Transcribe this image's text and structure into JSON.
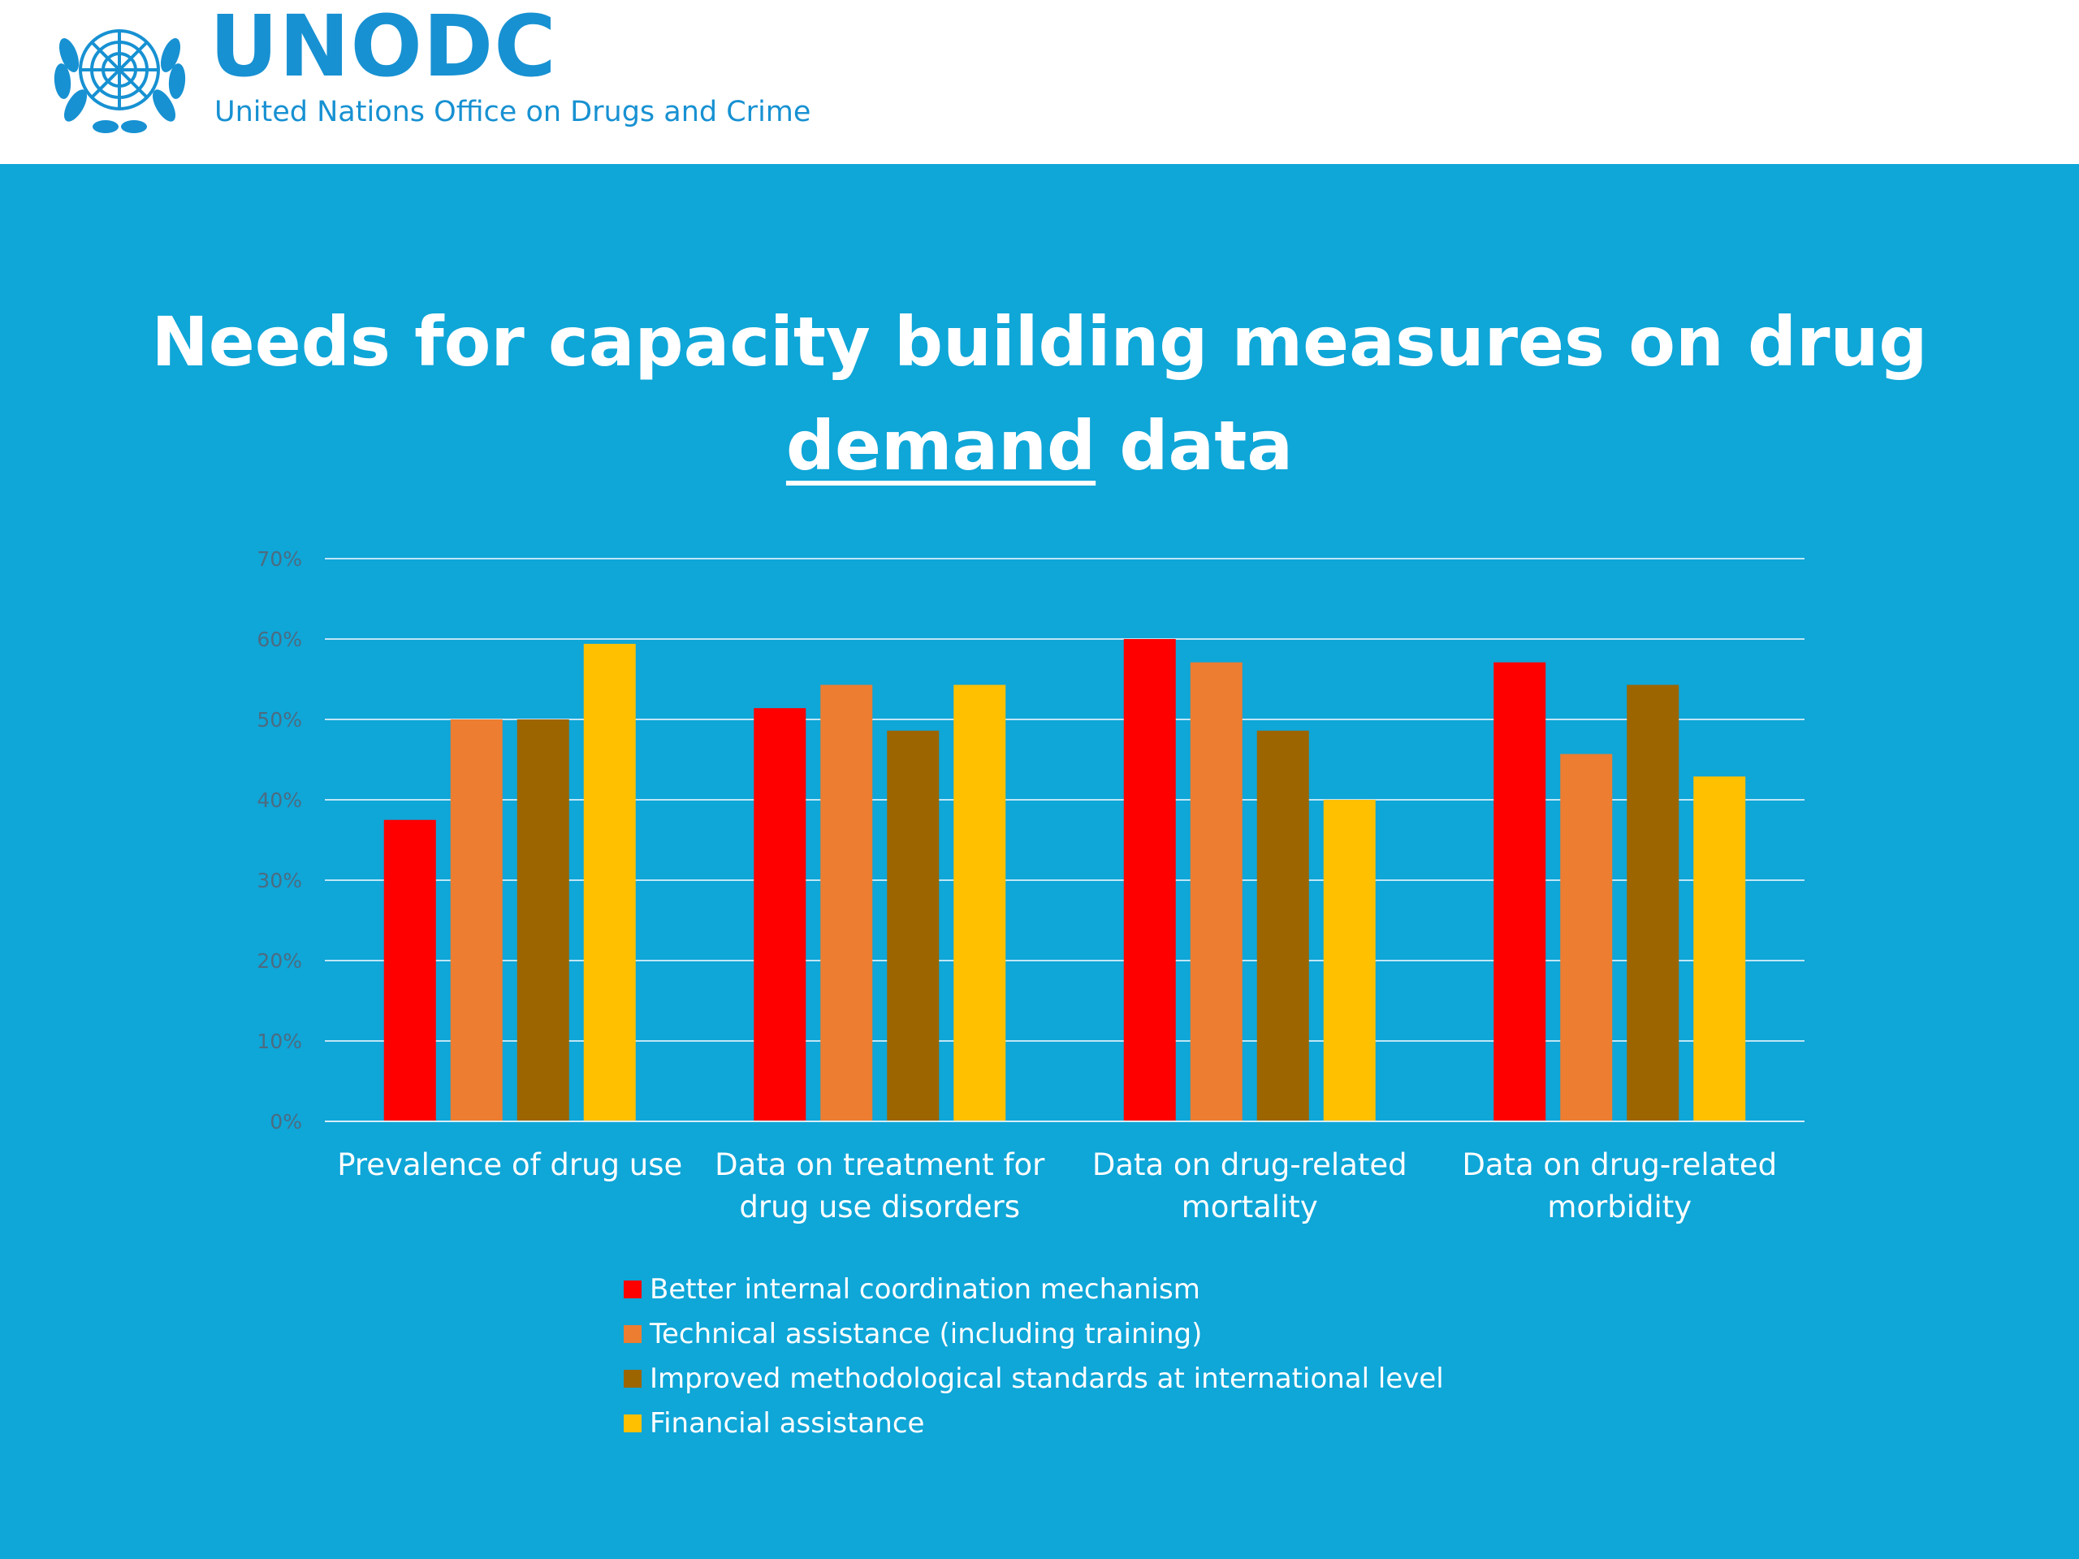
{
  "header": {
    "logo_name": "UNODC",
    "logo_subtitle": "United Nations Office on Drugs and Crime",
    "brand_color": "#1791d2"
  },
  "slide": {
    "title_line1": "Needs for capacity building measures on drug",
    "title_line2_underlined": "demand",
    "title_line2_rest": " data",
    "background_color": "#0fa6d8"
  },
  "chart_data": {
    "type": "bar",
    "categories": [
      [
        "Prevalence of drug use"
      ],
      [
        "Data on treatment for",
        "drug use disorders"
      ],
      [
        "Data on drug-related",
        "mortality"
      ],
      [
        "Data on drug-related",
        "morbidity"
      ]
    ],
    "series": [
      {
        "name": "Better internal coordination mechanism",
        "color": "#ff0000",
        "values": [
          37.5,
          51.4,
          60.0,
          57.1
        ]
      },
      {
        "name": "Technical assistance (including training)",
        "color": "#ed7d31",
        "values": [
          50.0,
          54.3,
          57.1,
          45.7
        ]
      },
      {
        "name": "Improved methodological standards at international level",
        "color": "#9c6500",
        "values": [
          50.0,
          48.6,
          48.6,
          54.3
        ]
      },
      {
        "name": "Financial assistance",
        "color": "#ffc000",
        "values": [
          59.4,
          54.3,
          40.0,
          42.9
        ]
      }
    ],
    "yticks": [
      "0%",
      "10%",
      "20%",
      "30%",
      "40%",
      "50%",
      "60%",
      "70%"
    ],
    "ylim": [
      0,
      70
    ],
    "grid": true,
    "legend_position": "bottom"
  }
}
